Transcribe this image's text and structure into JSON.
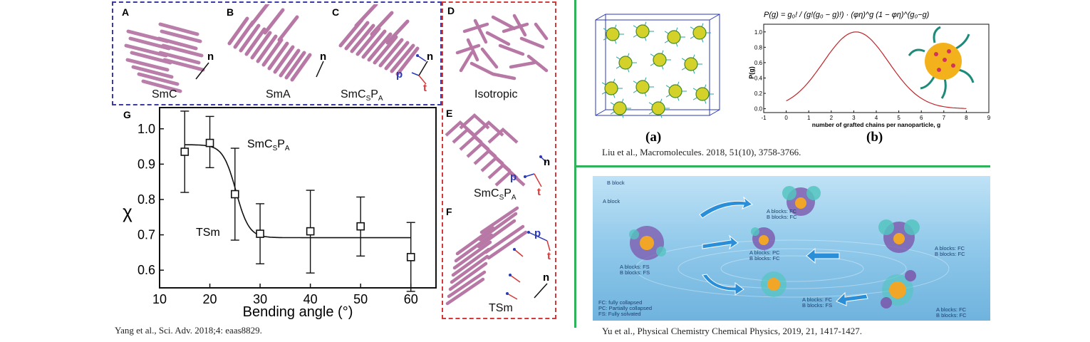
{
  "left_figure": {
    "panel_labels": {
      "a": "A",
      "b": "B",
      "c": "C",
      "d": "D",
      "e": "E",
      "f": "F",
      "g": "G"
    },
    "phases": {
      "smc": "SmC",
      "sma": "SmA",
      "smcspa": {
        "base": "SmC",
        "sub1": "S",
        "mid": "P",
        "sub2": "A"
      },
      "isotropic": "Isotropic",
      "tsm": "TSm"
    },
    "vector_labels": {
      "n": "n",
      "p": "p",
      "t": "t"
    },
    "caption": "Yang et al., Sci. Adv. 2018;4: eaas8829."
  },
  "chart_data": {
    "type": "scatter",
    "xlabel": "Bending angle (°)",
    "ylabel": "χ",
    "xlim": [
      10,
      65
    ],
    "ylim": [
      0.55,
      1.06
    ],
    "xticks": [
      10,
      20,
      30,
      40,
      50,
      60
    ],
    "yticks": [
      0.6,
      0.7,
      0.8,
      0.9,
      1.0
    ],
    "grid": false,
    "points": [
      {
        "x": 15,
        "y": 0.935,
        "err_low": 0.82,
        "err_high": 1.05
      },
      {
        "x": 20,
        "y": 0.96,
        "err_low": 0.89,
        "err_high": 1.035
      },
      {
        "x": 25,
        "y": 0.815,
        "err_low": 0.685,
        "err_high": 0.945
      },
      {
        "x": 30,
        "y": 0.703,
        "err_low": 0.618,
        "err_high": 0.788
      },
      {
        "x": 40,
        "y": 0.71,
        "err_low": 0.592,
        "err_high": 0.826
      },
      {
        "x": 50,
        "y": 0.724,
        "err_low": 0.64,
        "err_high": 0.807
      },
      {
        "x": 60,
        "y": 0.637,
        "err_low": 0.54,
        "err_high": 0.735
      }
    ],
    "fit_curve": {
      "high": 0.955,
      "low": 0.692,
      "center": 25.2,
      "width": 1.3
    },
    "annotations": {
      "upper": {
        "base": "SmC",
        "sub1": "S",
        "mid": "P",
        "sub2": "A"
      },
      "lower": "TSm"
    }
  },
  "right_top": {
    "label_a": "(a)",
    "label_b": "(b)",
    "caption": "Liu et al., Macromolecules. 2018, 51(10), 3758-3766.",
    "formula": "P(g) = g₀! / (g!(g₀ − g)!) · (φη)^g (1 − φη)^(g₀−g)",
    "inset_chart": {
      "type": "line",
      "xlabel": "number of grafted chains per nanoparticle, g",
      "ylabel": "P(g)",
      "xlim": [
        -1,
        9
      ],
      "ylim": [
        -0.05,
        1.1
      ],
      "xticks": [
        -1,
        0,
        1,
        2,
        3,
        4,
        5,
        6,
        7,
        8,
        9
      ],
      "yticks": [
        0.0,
        0.2,
        0.4,
        0.6,
        0.8,
        1.0
      ],
      "curve_color": "#c0262b",
      "peak_x": 3.1,
      "peak_y": 1.0
    }
  },
  "right_bottom": {
    "caption": "Yu et al., Physical Chemistry Chemical Physics, 2019, 21, 1417-1427.",
    "labels": {
      "b_block": "B block",
      "a_block": "A block",
      "fc_fc": [
        "A blocks: FC",
        "B blocks: FC"
      ],
      "pc_fc": [
        "A blocks: PC",
        "B blocks: FC"
      ],
      "fc_fc_right": [
        "A blocks: FC",
        "B blocks: FC"
      ],
      "fs_fs": [
        "A blocks: FS",
        "B blocks: FS"
      ],
      "fc_fs": [
        "A blocks: FC",
        "B blocks: FS"
      ],
      "fc_fc_bottom": [
        "A blocks: FC",
        "B blocks: FC"
      ],
      "legend": [
        "FC: fully collapsed",
        "PC: Partially collapsed",
        "FS: Fully solvated"
      ]
    }
  },
  "colors": {
    "blue_box": "#3a3aa8",
    "red_box": "#d43a3a",
    "green_line": "#2fb35a",
    "rod": "#c48ab5",
    "water": "#8fc8ea"
  }
}
